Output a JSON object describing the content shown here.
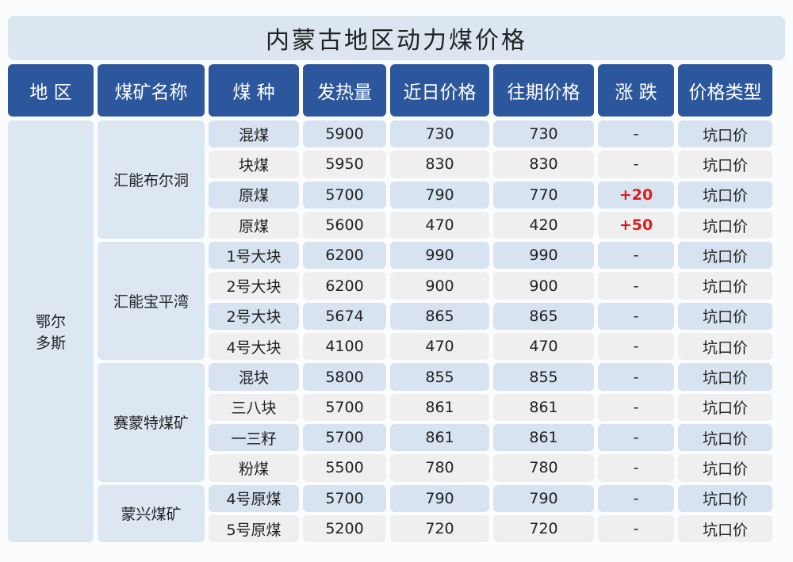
{
  "title": "内蒙古地区动力煤价格",
  "headers": [
    "地 区",
    "煤矿名称",
    "煤 种",
    "发热量",
    "近日价格",
    "往期价格",
    "涨 跌",
    "价格类型"
  ],
  "region": "鄂尔\n多斯",
  "groups": [
    {
      "mine": "汇能布尔洞",
      "rows": [
        [
          "混煤",
          "5900",
          "730",
          "730",
          "-",
          "坑口价"
        ],
        [
          "块煤",
          "5950",
          "830",
          "830",
          "-",
          "坑口价"
        ],
        [
          "原煤",
          "5700",
          "790",
          "770",
          "+20",
          "坑口价"
        ],
        [
          "原煤",
          "5600",
          "470",
          "420",
          "+50",
          "坑口价"
        ]
      ]
    },
    {
      "mine": "汇能宝平湾",
      "rows": [
        [
          "1号大块",
          "6200",
          "990",
          "990",
          "-",
          "坑口价"
        ],
        [
          "2号大块",
          "6200",
          "900",
          "900",
          "-",
          "坑口价"
        ],
        [
          "2号大块",
          "5674",
          "865",
          "865",
          "-",
          "坑口价"
        ],
        [
          "4号大块",
          "4100",
          "470",
          "470",
          "-",
          "坑口价"
        ]
      ]
    },
    {
      "mine": "赛蒙特煤矿",
      "rows": [
        [
          "混块",
          "5800",
          "855",
          "855",
          "-",
          "坑口价"
        ],
        [
          "三八块",
          "5700",
          "861",
          "861",
          "-",
          "坑口价"
        ],
        [
          "一三籽",
          "5700",
          "861",
          "861",
          "-",
          "坑口价"
        ],
        [
          "粉煤",
          "5500",
          "780",
          "780",
          "-",
          "坑口价"
        ]
      ]
    },
    {
      "mine": "蒙兴煤矿",
      "rows": [
        [
          "4号原煤",
          "5700",
          "790",
          "790",
          "-",
          "坑口价"
        ],
        [
          "5号原煤",
          "5200",
          "720",
          "720",
          "-",
          "坑口价"
        ]
      ]
    }
  ],
  "colors": {
    "header": "#2c579c",
    "row_blue": "#d7e3f0",
    "row_gray": "#efefef",
    "rise": "#d9201c"
  }
}
